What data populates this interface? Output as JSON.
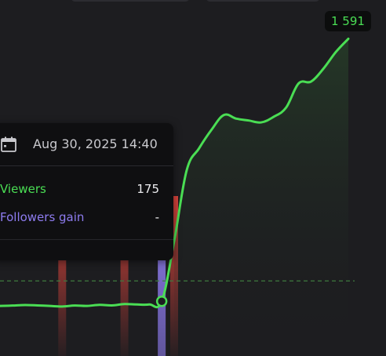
{
  "tooltip": {
    "date": "Aug 30, 2025 14:40",
    "rows": [
      {
        "label": "Viewers",
        "value": "175",
        "color": "#4ade54"
      },
      {
        "label": "Followers gain",
        "value": "-",
        "color": "#8e7cf0"
      }
    ]
  },
  "peak_label": "1 591",
  "colors": {
    "background": "#1d1d20",
    "viewers_line": "#4ade54",
    "followers_bar": "#8e7cf0",
    "red_bar": "#e0453d",
    "reference_line": "#3e7a3e"
  },
  "chart_data": {
    "type": "line",
    "title": "",
    "xlabel": "",
    "ylabel": "",
    "x": [
      0,
      1,
      2,
      3,
      4,
      5,
      6,
      7,
      8,
      9,
      10,
      11,
      12,
      13,
      14,
      15,
      16,
      17,
      18,
      19,
      20,
      21,
      22,
      23,
      24,
      25,
      26,
      27,
      28
    ],
    "series": [
      {
        "values": [
          150,
          152,
          155,
          153,
          150,
          147,
          152,
          150,
          156,
          153,
          160,
          158,
          158,
          175,
          500,
          880,
          1000,
          1100,
          1180,
          1160,
          1150,
          1140,
          1170,
          1220,
          1350,
          1360,
          1430,
          1520,
          1591
        ]
      }
    ],
    "highlight_index": 13,
    "highlight_value": 175,
    "peak_value": 1591,
    "reference_line_value": 285,
    "event_bars": [
      {
        "x": 5,
        "kind": "red"
      },
      {
        "x": 10,
        "kind": "red"
      },
      {
        "x": 13,
        "kind": "followers"
      },
      {
        "x": 14,
        "kind": "red"
      }
    ],
    "ylim": [
      -120,
      1800
    ],
    "grid": false,
    "legend": "none"
  }
}
